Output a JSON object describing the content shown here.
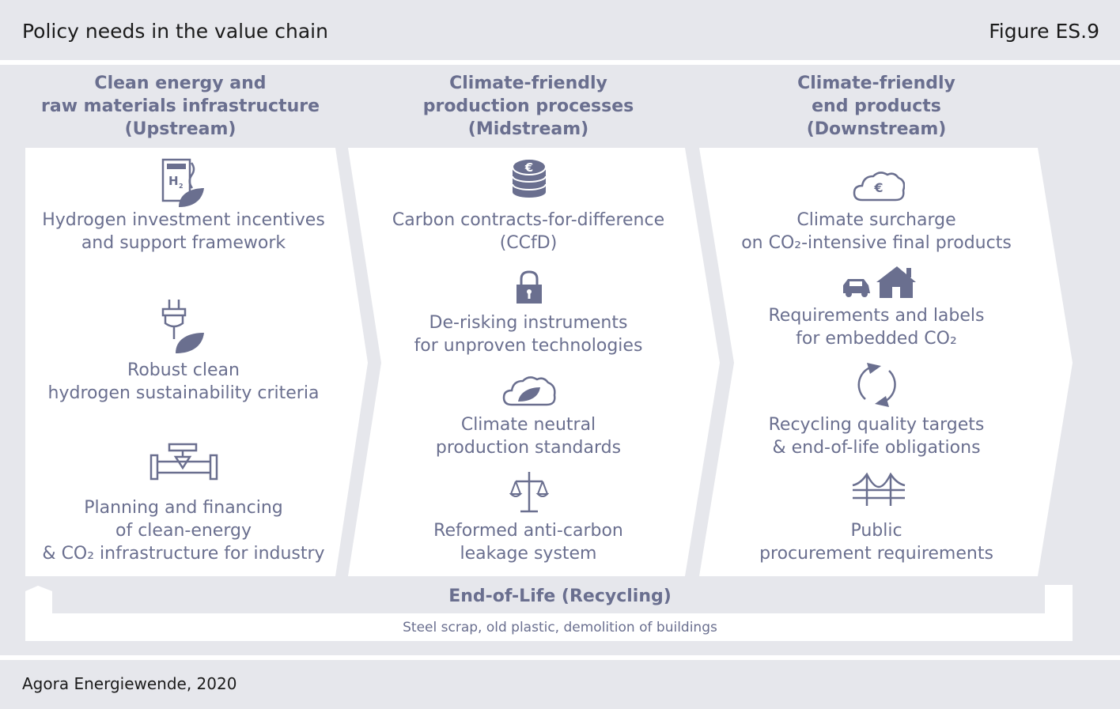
{
  "header": {
    "title": "Policy needs in the value chain",
    "figure_no": "Figure ES.9"
  },
  "columns": [
    {
      "title": [
        "Clean energy and",
        "raw materials infrastructure",
        "(Upstream)"
      ],
      "items": [
        {
          "icon": "hydrogen-leaf-icon",
          "lines": [
            "Hydrogen investment incentives",
            "and support framework"
          ]
        },
        {
          "icon": "plug-leaf-icon",
          "lines": [
            "Robust clean",
            "hydrogen sustainability criteria"
          ]
        },
        {
          "icon": "pipeline-icon",
          "lines": [
            "Planning and financing",
            "of clean-energy",
            "& CO₂ infrastructure for industry"
          ]
        }
      ]
    },
    {
      "title": [
        "Climate-friendly",
        "production processes",
        "(Midstream)"
      ],
      "items": [
        {
          "icon": "euro-coins-icon",
          "lines": [
            "Carbon contracts-for-difference",
            "(CCfD)"
          ]
        },
        {
          "icon": "padlock-icon",
          "lines": [
            "De-risking instruments",
            "for unproven technologies"
          ]
        },
        {
          "icon": "cloud-leaf-icon",
          "lines": [
            "Climate neutral",
            "production standards"
          ]
        },
        {
          "icon": "scales-icon",
          "lines": [
            "Reformed anti-carbon",
            "leakage system"
          ]
        }
      ]
    },
    {
      "title": [
        "Climate-friendly",
        "end products",
        "(Downstream)"
      ],
      "items": [
        {
          "icon": "cloud-euro-icon",
          "lines": [
            "Climate surcharge",
            "on CO₂-intensive final products"
          ]
        },
        {
          "icon": "car-house-icon",
          "lines": [
            "Requirements and labels",
            "for embedded CO₂"
          ]
        },
        {
          "icon": "recycle-arrows-icon",
          "lines": [
            "Recycling quality targets",
            "& end-of-life obligations"
          ]
        },
        {
          "icon": "bridge-icon",
          "lines": [
            "Public",
            "procurement requirements"
          ]
        }
      ]
    }
  ],
  "recycling": {
    "title": "End-of-Life (Recycling)",
    "subtitle": "Steel scrap, old plastic, demolition of buildings"
  },
  "footer": {
    "source": "Agora Energiewende, 2020"
  },
  "icon_text": {
    "hydrogen": "H",
    "hydrogen_sub": "2",
    "euro": "€"
  },
  "colors": {
    "accent": "#6a6f8f",
    "background": "#e6e7ec",
    "panel": "#ffffff",
    "title_text": "#1b1b1b"
  }
}
